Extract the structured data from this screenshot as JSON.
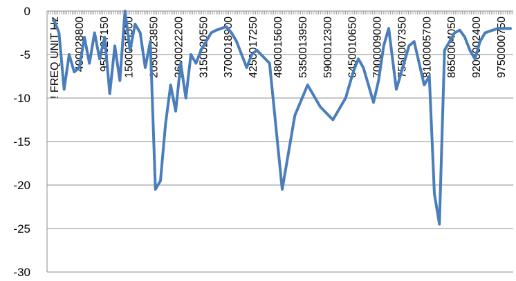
{
  "chart_data": {
    "type": "line",
    "title": "",
    "xlabel": "",
    "ylabel": "",
    "ylim": [
      -30,
      0
    ],
    "y_ticks": [
      "0",
      "-5",
      "-10",
      "-15",
      "-20",
      "-25",
      "-30"
    ],
    "x_ticks": [
      "! FREQ UNIT Hz",
      "400028800",
      "950027150",
      "1500025500",
      "2050023850",
      "2600022200",
      "3150020550",
      "3700018900",
      "4250017250",
      "4800015600",
      "5350013950",
      "5900012300",
      "6450010650",
      "7000009000",
      "7550007350",
      "8100005700",
      "8650004050",
      "9200002400",
      "9750000750"
    ],
    "grid": "horizontal",
    "legend": "none",
    "x": [
      0,
      0.2,
      0.4,
      0.6,
      0.8,
      1.0,
      1.2,
      1.4,
      1.6,
      1.8,
      2.0,
      2.2,
      2.4,
      2.6,
      2.8,
      3.0,
      3.2,
      3.4,
      3.6,
      3.8,
      4.0,
      4.2,
      4.4,
      4.6,
      4.8,
      5.0,
      5.2,
      5.4,
      5.6,
      5.8,
      6.0,
      6.2,
      6.4,
      6.6,
      6.8,
      7.0,
      7.2,
      7.4,
      7.6,
      7.8,
      8.0,
      8.5,
      9.0,
      9.5,
      10.0,
      10.5,
      11.0,
      11.5,
      11.8,
      12.0,
      12.2,
      12.4,
      12.6,
      12.8,
      13.0,
      13.2,
      13.5,
      14.0,
      14.2,
      14.4,
      14.6,
      14.8,
      15.0,
      15.2,
      15.4,
      15.6,
      15.8,
      16.0,
      16.2,
      16.4,
      16.6,
      16.8,
      17.0,
      17.5,
      18.0
    ],
    "series": [
      {
        "color": "#4a7ebb",
        "values": [
          -1.0,
          -2.5,
          -9.0,
          -5.0,
          -7.0,
          -6.5,
          -3.0,
          -6.0,
          -2.5,
          -5.5,
          -3.0,
          -9.5,
          -4.0,
          -8.0,
          0.0,
          -4.5,
          -1.5,
          -2.5,
          -6.5,
          -3.5,
          -20.5,
          -19.5,
          -13.0,
          -8.5,
          -11.5,
          -6.0,
          -10.0,
          -5.0,
          -6.0,
          -4.5,
          -3.5,
          -2.5,
          -2.2,
          -2.0,
          -1.8,
          -2.5,
          -3.5,
          -5.0,
          -6.5,
          -5.0,
          -4.5,
          -6.0,
          -20.5,
          -12.0,
          -8.5,
          -11.0,
          -12.5,
          -10.0,
          -7.0,
          -5.5,
          -6.5,
          -8.5,
          -10.5,
          -8.0,
          -4.0,
          -2.0,
          -9.0,
          -4.0,
          -3.5,
          -6.0,
          -8.5,
          -7.5,
          -21.0,
          -24.5,
          -4.5,
          -3.5,
          -2.5,
          -2.2,
          -3.0,
          -4.5,
          -5.5,
          -3.5,
          -2.5,
          -2.0,
          -2.0
        ]
      }
    ]
  }
}
